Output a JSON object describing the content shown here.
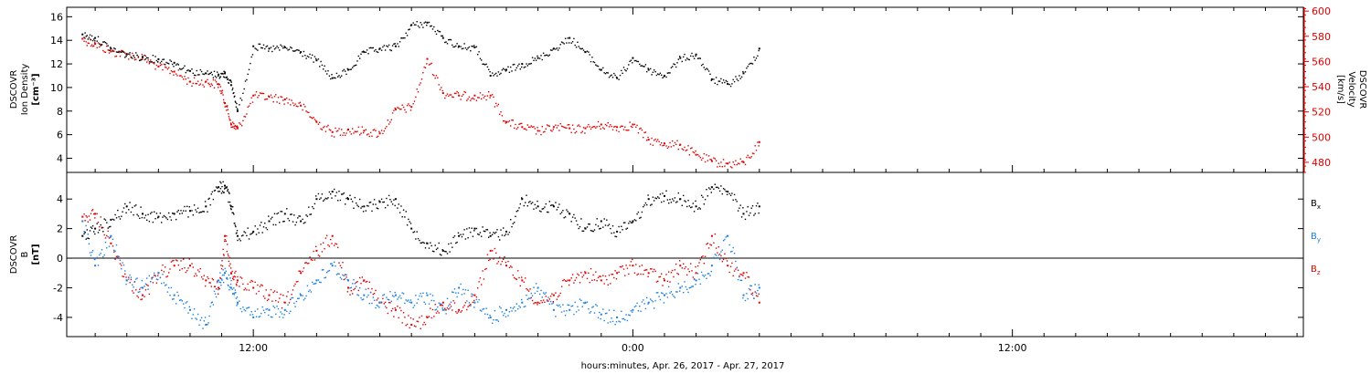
{
  "chart_data": [
    {
      "type": "scatter",
      "panel": "top",
      "ylabel": [
        "DSCOVR",
        "Ion Density",
        "[cm⁻³]"
      ],
      "ylim": [
        2.8,
        16.8
      ],
      "yticks": [
        4,
        6,
        8,
        10,
        12,
        14,
        16
      ],
      "y2label": [
        "DSCOVR",
        "Velocity",
        "[km/s]"
      ],
      "y2lim": [
        472,
        603
      ],
      "y2ticks": [
        480,
        500,
        520,
        540,
        560,
        580,
        600
      ],
      "series": [
        {
          "axis": "left",
          "color": "#000000",
          "x": [
            6.6,
            7.0,
            7.5,
            8.0,
            8.5,
            9.0,
            9.5,
            10.0,
            10.5,
            10.9,
            11.1,
            11.3,
            11.5,
            12.0,
            12.5,
            13.0,
            13.5,
            14.0,
            14.5,
            15.0,
            15.5,
            16.0,
            16.5,
            17.0,
            17.5,
            18.0,
            18.5,
            19.0,
            19.5,
            20.0,
            20.5,
            21.0,
            21.5,
            22.0,
            22.5,
            23.0,
            23.5,
            0.0,
            0.5,
            1.0,
            1.5,
            2.0,
            2.5,
            3.0,
            3.5,
            4.0
          ],
          "y": [
            14.5,
            14.2,
            13.3,
            12.8,
            12.6,
            12.4,
            12.1,
            11.4,
            11.2,
            11.1,
            11.2,
            10.2,
            8.0,
            13.5,
            13.3,
            13.4,
            13.0,
            12.3,
            10.8,
            11.5,
            13.0,
            13.3,
            13.5,
            15.3,
            15.5,
            14.2,
            13.5,
            13.4,
            11.0,
            11.5,
            12.0,
            12.5,
            13.3,
            14.2,
            13.0,
            11.5,
            10.8,
            12.5,
            11.5,
            11.0,
            12.5,
            12.8,
            10.7,
            10.3,
            11.2,
            13.3
          ]
        },
        {
          "axis": "right",
          "color": "#e00000",
          "x": [
            6.6,
            7.0,
            7.5,
            8.0,
            8.5,
            9.0,
            9.5,
            10.0,
            10.5,
            10.9,
            11.1,
            11.3,
            11.5,
            12.0,
            12.5,
            13.0,
            13.5,
            14.0,
            14.5,
            15.0,
            15.5,
            16.0,
            16.5,
            17.0,
            17.5,
            18.0,
            18.5,
            19.0,
            19.5,
            20.0,
            20.5,
            21.0,
            21.5,
            22.0,
            22.5,
            23.0,
            23.5,
            0.0,
            0.5,
            1.0,
            1.5,
            2.0,
            2.5,
            3.0,
            3.5,
            4.0
          ],
          "y": [
            578,
            574,
            568,
            566,
            563,
            556,
            552,
            544,
            544,
            542,
            527,
            510,
            507,
            533,
            532,
            530,
            525,
            512,
            504,
            506,
            505,
            503,
            522,
            524,
            562,
            535,
            533,
            533,
            533,
            512,
            508,
            505,
            508,
            507,
            507,
            510,
            508,
            510,
            498,
            495,
            494,
            486,
            481,
            479,
            480,
            496
          ]
        }
      ]
    },
    {
      "type": "scatter",
      "panel": "bottom",
      "ylabel": [
        "DSCOVR",
        "B",
        "[nT]"
      ],
      "ylim": [
        -5.3,
        5.8
      ],
      "yticks": [
        -4,
        -2,
        0,
        2,
        4
      ],
      "reference_line": 0,
      "xticks": [
        "12:00",
        "0:00",
        "12:00"
      ],
      "xtick_hours": [
        12,
        24,
        36
      ],
      "xlim_hours": [
        6.1,
        45.2
      ],
      "xlabel": "hours:minutes, Apr. 26, 2017 - Apr. 27, 2017",
      "legend": [
        "Bx",
        "By",
        "Bz"
      ],
      "legend_colors": [
        "#000000",
        "#1a7fe0",
        "#e00000"
      ],
      "series": [
        {
          "name": "Bx",
          "color": "#000000",
          "x": [
            6.6,
            7.0,
            7.5,
            8.0,
            8.5,
            9.0,
            9.5,
            10.0,
            10.5,
            10.9,
            11.1,
            11.3,
            11.5,
            12.0,
            12.5,
            13.0,
            13.5,
            14.0,
            14.5,
            15.0,
            15.5,
            16.0,
            16.5,
            17.0,
            17.5,
            18.0,
            18.5,
            19.0,
            19.5,
            20.0,
            20.5,
            21.0,
            21.5,
            22.0,
            22.5,
            23.0,
            23.5,
            0.0,
            0.5,
            1.0,
            1.5,
            2.0,
            2.5,
            3.0,
            3.5,
            4.0
          ],
          "y": [
            1.5,
            2.0,
            2.6,
            3.5,
            3.0,
            2.8,
            3.0,
            3.2,
            3.5,
            4.8,
            4.9,
            3.5,
            1.5,
            1.8,
            2.5,
            3.0,
            2.5,
            4.0,
            4.5,
            4.0,
            3.5,
            3.8,
            4.0,
            2.0,
            1.0,
            0.5,
            1.5,
            2.0,
            1.5,
            1.8,
            4.0,
            3.5,
            3.5,
            3.0,
            2.0,
            2.5,
            1.8,
            2.5,
            4.0,
            4.2,
            4.0,
            3.5,
            4.8,
            4.5,
            3.0,
            3.5
          ]
        },
        {
          "name": "By",
          "color": "#1a7fe0",
          "x": [
            6.6,
            7.0,
            7.5,
            8.0,
            8.5,
            9.0,
            9.5,
            10.0,
            10.5,
            10.9,
            11.1,
            11.3,
            11.5,
            12.0,
            12.5,
            13.0,
            13.5,
            14.0,
            14.5,
            15.0,
            15.5,
            16.0,
            16.5,
            17.0,
            17.5,
            18.0,
            18.5,
            19.0,
            19.5,
            20.0,
            20.5,
            21.0,
            21.5,
            22.0,
            22.5,
            23.0,
            23.5,
            0.0,
            0.5,
            1.0,
            1.5,
            2.0,
            2.5,
            3.0,
            3.5,
            4.0
          ],
          "y": [
            2.5,
            -0.5,
            1.5,
            -1.5,
            -2.0,
            -1.0,
            -2.5,
            -3.5,
            -4.5,
            -1.5,
            -1.0,
            -2.0,
            -3.0,
            -4.0,
            -3.5,
            -3.5,
            -2.5,
            -1.5,
            -0.5,
            -1.5,
            -2.5,
            -3.0,
            -2.5,
            -3.0,
            -2.5,
            -3.5,
            -2.0,
            -3.0,
            -4.0,
            -3.5,
            -3.0,
            -2.0,
            -3.5,
            -3.5,
            -3.0,
            -3.8,
            -4.0,
            -3.5,
            -3.0,
            -2.5,
            -2.0,
            -1.5,
            -0.5,
            1.5,
            -2.5,
            -2.0
          ]
        },
        {
          "name": "Bz",
          "color": "#e00000",
          "x": [
            6.6,
            7.0,
            7.5,
            8.0,
            8.5,
            9.0,
            9.5,
            10.0,
            10.5,
            10.9,
            11.1,
            11.3,
            11.5,
            12.0,
            12.5,
            13.0,
            13.5,
            14.0,
            14.5,
            15.0,
            15.5,
            16.0,
            16.5,
            17.0,
            17.5,
            18.0,
            18.5,
            19.0,
            19.5,
            20.0,
            20.5,
            21.0,
            21.5,
            22.0,
            22.5,
            23.0,
            23.5,
            0.0,
            0.5,
            1.0,
            1.5,
            2.0,
            2.5,
            3.0,
            3.5,
            4.0
          ],
          "y": [
            2.8,
            3.0,
            1.0,
            -1.5,
            -2.5,
            -1.0,
            -0.5,
            -0.5,
            -1.5,
            -2.0,
            1.5,
            -1.0,
            -1.5,
            -2.0,
            -2.5,
            -3.0,
            -1.0,
            0.5,
            1.5,
            -2.0,
            -1.5,
            -3.0,
            -3.5,
            -4.5,
            -4.0,
            -3.0,
            -3.5,
            -2.5,
            0.5,
            -0.5,
            -1.5,
            -3.0,
            -2.5,
            -1.5,
            -1.0,
            -1.5,
            -1.0,
            -0.5,
            -1.0,
            -1.5,
            -0.5,
            -1.0,
            1.5,
            -0.5,
            -1.0,
            -3.0
          ]
        }
      ]
    }
  ]
}
